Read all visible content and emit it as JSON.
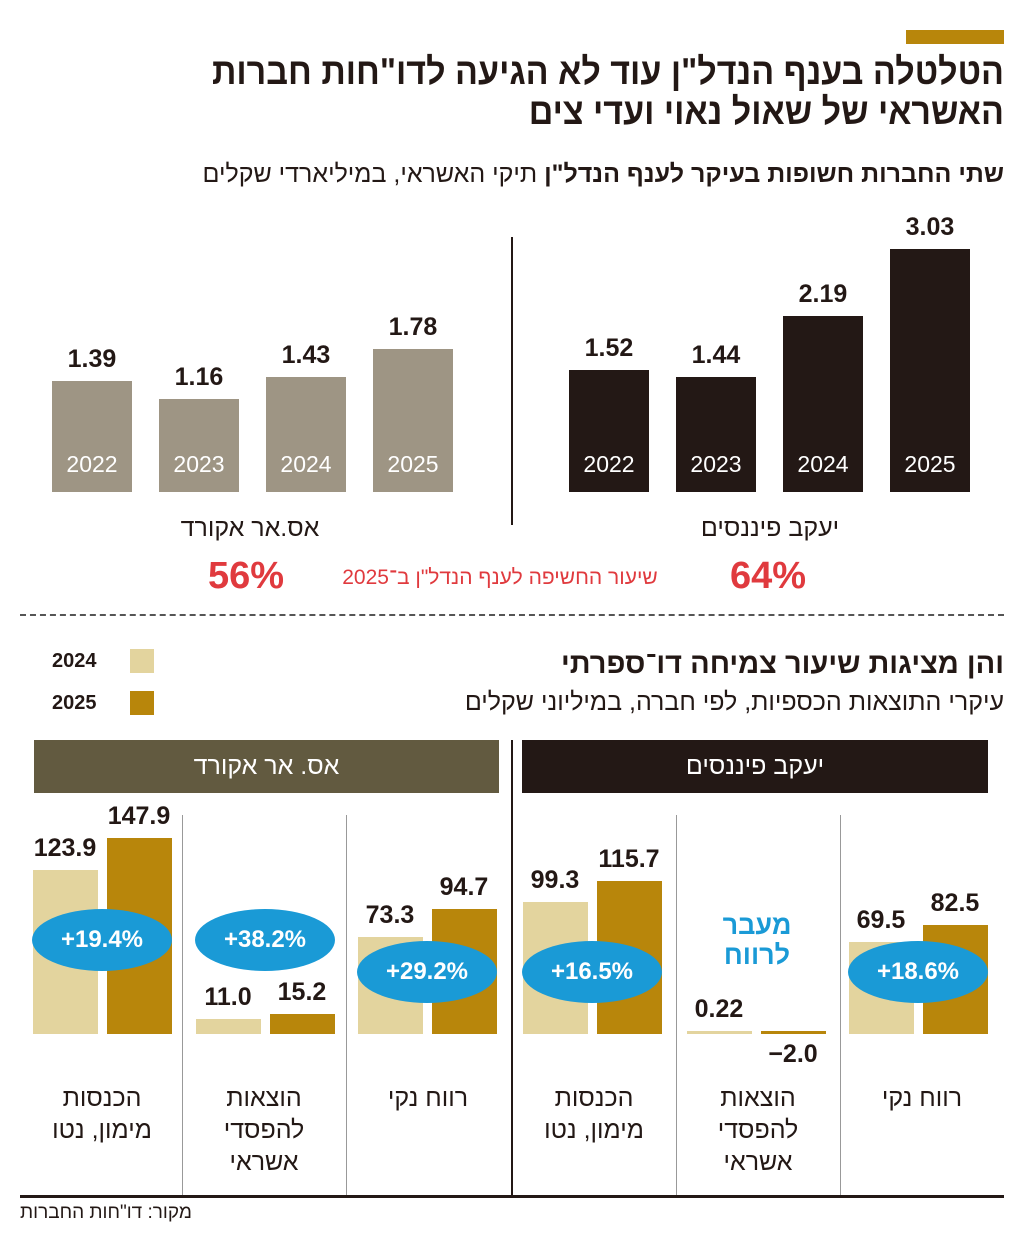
{
  "title_line1": "הטלטלה בענף הנדל\"ן עוד לא הגיעה לדו\"חות חברות",
  "title_line2": "האשראי של שאול נאוי ועדי צים",
  "top_subtitle_bold": "שתי החברות חשופות בעיקר לענף הנדל\"ן",
  "top_subtitle_rest": " תיקי האשראי, במיליארדי שקלים",
  "exposure_label": "שיעור החשיפה לענף הנדל\"ן ב־2025",
  "bottom_title": "והן מציגות שיעור צמיחה דו־ספרתי",
  "bottom_subtitle": "עיקרי התוצאות הכספיות, לפי חברה, במיליוני שקלים",
  "source": "מקור: דו\"חות החברות",
  "colors": {
    "accent": "#b8860b",
    "dark": "#231815",
    "grey": "#9e9584",
    "light2024": "#e3d49e",
    "gold2025": "#b8860b",
    "oval": "#1a9ad6",
    "red": "#e03a3e",
    "header_sr": "#625a40"
  },
  "chart_data": [
    {
      "type": "bar",
      "unit": "billions NIS",
      "categories": [
        "2022",
        "2023",
        "2024",
        "2025"
      ],
      "series": [
        {
          "name": "יעקב פיננסים",
          "values": [
            1.52,
            1.44,
            2.19,
            3.03
          ],
          "exposure": "64%",
          "color": "#231815"
        },
        {
          "name": "אס.אר אקורד",
          "values": [
            1.39,
            1.16,
            1.43,
            1.78
          ],
          "exposure": "56%",
          "color": "#9e9584"
        }
      ]
    },
    {
      "type": "bar",
      "unit": "millions NIS",
      "legend": [
        "2024",
        "2025"
      ],
      "companies": [
        {
          "name": "יעקב פיננסים",
          "metrics": [
            {
              "label": "רווח נקי",
              "v2024": 69.5,
              "v2025": 82.5,
              "v2024_label": "69.5",
              "v2025_label": "82.5",
              "change": "+18.6%"
            },
            {
              "label": "הוצאות להפסדי אשראי",
              "v2024": 0.22,
              "v2025": -2.0,
              "v2024_label": "0.22",
              "v2025_label": "−2.0",
              "note": "מעבר לרווח"
            },
            {
              "label": "הכנסות מימון, נטו",
              "v2024": 99.3,
              "v2025": 115.7,
              "v2024_label": "99.3",
              "v2025_label": "115.7",
              "change": "+16.5%"
            }
          ]
        },
        {
          "name": "אס. אר אקורד",
          "metrics": [
            {
              "label": "רווח נקי",
              "v2024": 73.3,
              "v2025": 94.7,
              "v2024_label": "73.3",
              "v2025_label": "94.7",
              "change": "+29.2%"
            },
            {
              "label": "הוצאות להפסדי אשראי",
              "v2024": 11.0,
              "v2025": 15.2,
              "v2024_label": "11.0",
              "v2025_label": "15.2",
              "change": "+38.2%"
            },
            {
              "label": "הכנסות מימון, נטו",
              "v2024": 123.9,
              "v2025": 147.9,
              "v2024_label": "123.9",
              "v2025_label": "147.9",
              "change": "+19.4%"
            }
          ]
        }
      ]
    }
  ]
}
